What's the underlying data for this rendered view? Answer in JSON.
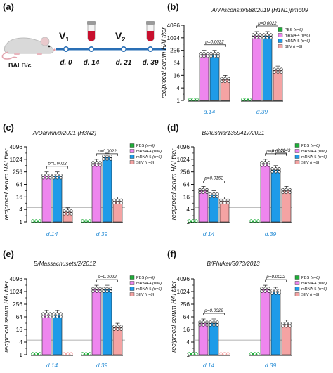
{
  "colors": {
    "PBS": "#1fae3a",
    "mRNA-4": "#ee86ee",
    "mRNA-5": "#1e9be8",
    "SIIV": "#f4a3a3",
    "axis_group": "#2b8fd6",
    "timeline": "#2a6fb5",
    "vial_red": "#c8102e"
  },
  "icons": [
    "mouse-icon",
    "vaccine-vial-icon"
  ],
  "schedule": {
    "label": "(a)",
    "mouse": "BALB/c",
    "v1": "V",
    "v1_sub": "1",
    "v2": "V",
    "v2_sub": "2",
    "days": [
      "d. 0",
      "d. 14",
      "d. 21",
      "d. 39"
    ]
  },
  "chart_data": [
    {
      "label": "(b)",
      "type": "bar",
      "title": "A/Wisconsin/588/2019 (H1N1)pmd09",
      "ylabel": "reciprocal serum HAI titer",
      "yscale": "log2",
      "ylim": [
        1,
        4096
      ],
      "yticks": [
        "1",
        "4",
        "16",
        "64",
        "256",
        "1024",
        "4096"
      ],
      "groups": [
        "d.14",
        "d.39"
      ],
      "legend": [
        {
          "name": "PBS",
          "n": "(n=6)"
        },
        {
          "name": "mRNA-4",
          "n": "(n=6)"
        },
        {
          "name": "mRNA-5",
          "n": "(n=6)"
        },
        {
          "name": "SIIV",
          "n": "(n=6)"
        }
      ],
      "legend_position": "top-right",
      "series": [
        {
          "name": "PBS",
          "values": [
            1,
            1
          ]
        },
        {
          "name": "mRNA-4",
          "values": [
            160,
            1280
          ]
        },
        {
          "name": "mRNA-5",
          "values": [
            160,
            1280
          ]
        },
        {
          "name": "SIIV",
          "values": [
            10,
            28
          ]
        }
      ],
      "annotations": [
        {
          "group": "d.14",
          "text": "p=0.0022"
        },
        {
          "group": "d.39",
          "text": "p=0.0022"
        }
      ]
    },
    {
      "label": "(c)",
      "type": "bar",
      "title": "A/Darwin/9/2021 (H3N2)",
      "ylabel": "reciprocal serum HAI titer",
      "yscale": "log2",
      "ylim": [
        1,
        4096
      ],
      "yticks": [
        "1",
        "4",
        "16",
        "64",
        "256",
        "1024",
        "4096"
      ],
      "groups": [
        "d.14",
        "d.39"
      ],
      "legend": [
        {
          "name": "PBS",
          "n": "(n=6)"
        },
        {
          "name": "mRNA-4",
          "n": "(n=6)"
        },
        {
          "name": "mRNA-5",
          "n": "(n=6)"
        },
        {
          "name": "SIIV",
          "n": "(n=6)"
        }
      ],
      "legend_position": "top-right",
      "series": [
        {
          "name": "PBS",
          "values": [
            1,
            1
          ]
        },
        {
          "name": "mRNA-4",
          "values": [
            160,
            640
          ]
        },
        {
          "name": "mRNA-5",
          "values": [
            160,
            1280
          ]
        },
        {
          "name": "SIIV",
          "values": [
            3,
            10
          ]
        }
      ],
      "annotations": [
        {
          "group": "d.14",
          "text": "p=0.0022"
        },
        {
          "group": "d.39",
          "text": "p=0.0022"
        }
      ]
    },
    {
      "label": "(d)",
      "type": "bar",
      "title": "B/Austria/1359417/2021",
      "ylabel": "reciprocal serum HAI titer",
      "yscale": "log2",
      "ylim": [
        1,
        4096
      ],
      "yticks": [
        "1",
        "4",
        "16",
        "64",
        "256",
        "1024",
        "4096"
      ],
      "groups": [
        "d.14",
        "d.39"
      ],
      "legend": [
        {
          "name": "PBS",
          "n": "(n=6)"
        },
        {
          "name": "mRNA-4",
          "n": "(n=6)"
        },
        {
          "name": "mRNA-5",
          "n": "(n=6)"
        },
        {
          "name": "SIIV",
          "n": "(n=6)"
        }
      ],
      "legend_position": "top-right",
      "series": [
        {
          "name": "PBS",
          "values": [
            1,
            1
          ]
        },
        {
          "name": "mRNA-4",
          "values": [
            32,
            640
          ]
        },
        {
          "name": "mRNA-5",
          "values": [
            20,
            320
          ]
        },
        {
          "name": "SIIV",
          "values": [
            10,
            32
          ]
        }
      ],
      "annotations": [
        {
          "group": "d.14",
          "text": "p=0.0152"
        },
        {
          "group": "d.39",
          "text": "p=0.0022"
        },
        {
          "group": "d.39",
          "text": "p=0.0043"
        }
      ]
    },
    {
      "label": "(e)",
      "type": "bar",
      "title": "B/Massachusets/2/2012",
      "ylabel": "reciprocal serum HAI titer",
      "yscale": "log2",
      "ylim": [
        1,
        4096
      ],
      "yticks": [
        "1",
        "4",
        "16",
        "64",
        "256",
        "1024",
        "4096"
      ],
      "groups": [
        "d.14",
        "d.39"
      ],
      "legend": [
        {
          "name": "PBS",
          "n": "(n=6)"
        },
        {
          "name": "mRNA-4",
          "n": "(n=6)"
        },
        {
          "name": "mRNA-5",
          "n": "(n=6)"
        },
        {
          "name": "SIIV",
          "n": "(n=6)"
        }
      ],
      "legend_position": "top-right",
      "series": [
        {
          "name": "PBS",
          "values": [
            1,
            1
          ]
        },
        {
          "name": "mRNA-4",
          "values": [
            80,
            1280
          ]
        },
        {
          "name": "mRNA-5",
          "values": [
            80,
            1280
          ]
        },
        {
          "name": "SIIV",
          "values": [
            1,
            20
          ]
        }
      ],
      "annotations": [
        {
          "group": "d.39",
          "text": "p=0.0022"
        }
      ]
    },
    {
      "label": "(f)",
      "type": "bar",
      "title": "B/Phuket/3073/2013",
      "ylabel": "reciprocal serum HAI titer",
      "yscale": "log2",
      "ylim": [
        1,
        4096
      ],
      "yticks": [
        "1",
        "4",
        "16",
        "64",
        "256",
        "1024",
        "4096"
      ],
      "groups": [
        "d.14",
        "d.39"
      ],
      "legend": [
        {
          "name": "PBS",
          "n": "(n=6)"
        },
        {
          "name": "mRNA-4",
          "n": "(n=6)"
        },
        {
          "name": "mRNA-5",
          "n": "(n=6)"
        },
        {
          "name": "SIIV",
          "n": "(n=6)"
        }
      ],
      "legend_position": "top-right",
      "series": [
        {
          "name": "PBS",
          "values": [
            1,
            1
          ]
        },
        {
          "name": "mRNA-4",
          "values": [
            32,
            1280
          ]
        },
        {
          "name": "mRNA-5",
          "values": [
            32,
            1024
          ]
        },
        {
          "name": "SIIV",
          "values": [
            1,
            28
          ]
        }
      ],
      "annotations": [
        {
          "group": "d.14",
          "text": "p=0.0022"
        },
        {
          "group": "d.39",
          "text": "p=0.0022"
        }
      ]
    }
  ]
}
